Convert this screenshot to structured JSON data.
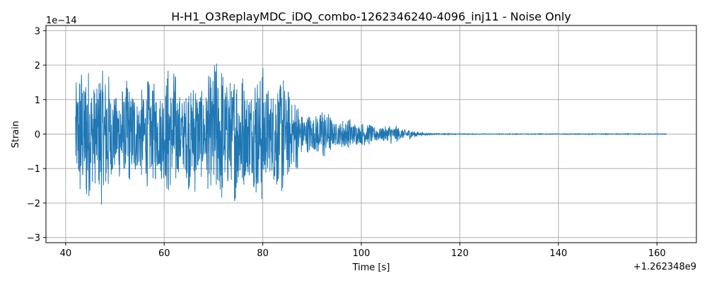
{
  "chart_data": {
    "type": "line",
    "title": "H-H1_O3ReplayMDC_iDQ_combo-1262346240-4096_inj11 - Noise Only",
    "xlabel": "Time [s]",
    "ylabel": "Strain",
    "x_offset_label": "+1.262348e9",
    "y_scale_label": "1e−14",
    "xlim": [
      36,
      168
    ],
    "ylim": [
      -3.15,
      3.15
    ],
    "x_ticks": [
      40,
      60,
      80,
      100,
      120,
      140,
      160
    ],
    "x_tick_labels": [
      "40",
      "60",
      "80",
      "100",
      "120",
      "140",
      "160"
    ],
    "y_ticks": [
      -3,
      -2,
      -1,
      0,
      1,
      2,
      3
    ],
    "y_tick_labels": [
      "−3",
      "−2",
      "−1",
      "0",
      "1",
      "2",
      "3"
    ],
    "grid": true,
    "series": [
      {
        "color": "#1f77b4",
        "x_start": 42,
        "x_end": 162,
        "envelope": [
          [
            42,
            2.2
          ],
          [
            43,
            2.1
          ],
          [
            44,
            2.3
          ],
          [
            45,
            2.7
          ],
          [
            46,
            2.2
          ],
          [
            48,
            2.2
          ],
          [
            50,
            1.9
          ],
          [
            52,
            1.6
          ],
          [
            54,
            1.9
          ],
          [
            56,
            1.5
          ],
          [
            58,
            1.8
          ],
          [
            60,
            2.0
          ],
          [
            62,
            2.1
          ],
          [
            64,
            1.7
          ],
          [
            66,
            1.8
          ],
          [
            68,
            1.9
          ],
          [
            70,
            2.2
          ],
          [
            72,
            2.7
          ],
          [
            74,
            2.0
          ],
          [
            76,
            2.2
          ],
          [
            78,
            2.0
          ],
          [
            80,
            2.2
          ],
          [
            82,
            2.0
          ],
          [
            84,
            1.9
          ],
          [
            86,
            1.6
          ],
          [
            87,
            1.3
          ],
          [
            88,
            0.55
          ],
          [
            90,
            0.8
          ],
          [
            92,
            0.9
          ],
          [
            94,
            0.6
          ],
          [
            96,
            0.5
          ],
          [
            98,
            0.5
          ],
          [
            100,
            0.45
          ],
          [
            102,
            0.3
          ],
          [
            104,
            0.3
          ],
          [
            106,
            0.3
          ],
          [
            108,
            0.25
          ],
          [
            110,
            0.15
          ],
          [
            112,
            0.05
          ],
          [
            114,
            0.02
          ],
          [
            120,
            0.01
          ],
          [
            162,
            0.01
          ]
        ]
      }
    ]
  }
}
